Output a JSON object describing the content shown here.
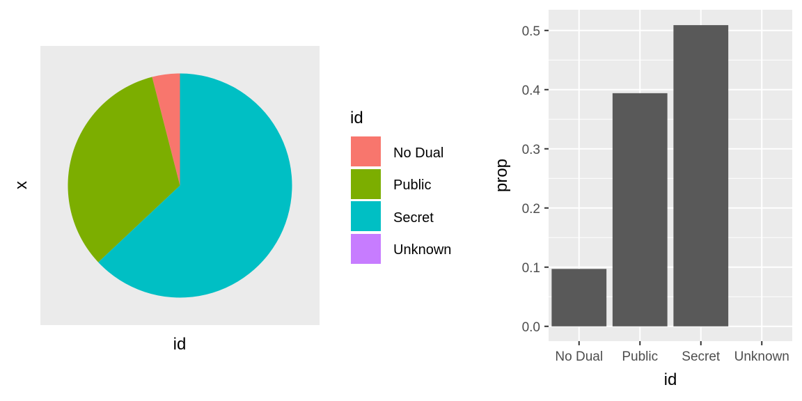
{
  "chart_data": [
    {
      "type": "pie",
      "categories": [
        "No Dual",
        "Public",
        "Secret",
        "Unknown"
      ],
      "values": [
        0.04,
        0.33,
        0.63,
        0.0
      ],
      "xlabel": "id",
      "ylabel": "x",
      "legend": {
        "title": "id",
        "placement": "right",
        "entries": [
          {
            "label": "No Dual",
            "color": "#F8766D"
          },
          {
            "label": "Public",
            "color": "#7CAE00"
          },
          {
            "label": "Secret",
            "color": "#00BFC4"
          },
          {
            "label": "Unknown",
            "color": "#C77CFF"
          }
        ]
      },
      "background": "#EBEBEB",
      "grid": false
    },
    {
      "type": "bar",
      "categories": [
        "No Dual",
        "Public",
        "Secret",
        "Unknown"
      ],
      "values": [
        0.097,
        0.394,
        0.509,
        0.0
      ],
      "xlabel": "id",
      "ylabel": "prop",
      "ylim": [
        -0.025,
        0.535
      ],
      "yticks": [
        0.0,
        0.1,
        0.2,
        0.3,
        0.4,
        0.5
      ],
      "ytick_labels": [
        "0.0",
        "0.1",
        "0.2",
        "0.3",
        "0.4",
        "0.5"
      ],
      "bar_color": "#595959",
      "background": "#EBEBEB",
      "grid": true
    }
  ]
}
